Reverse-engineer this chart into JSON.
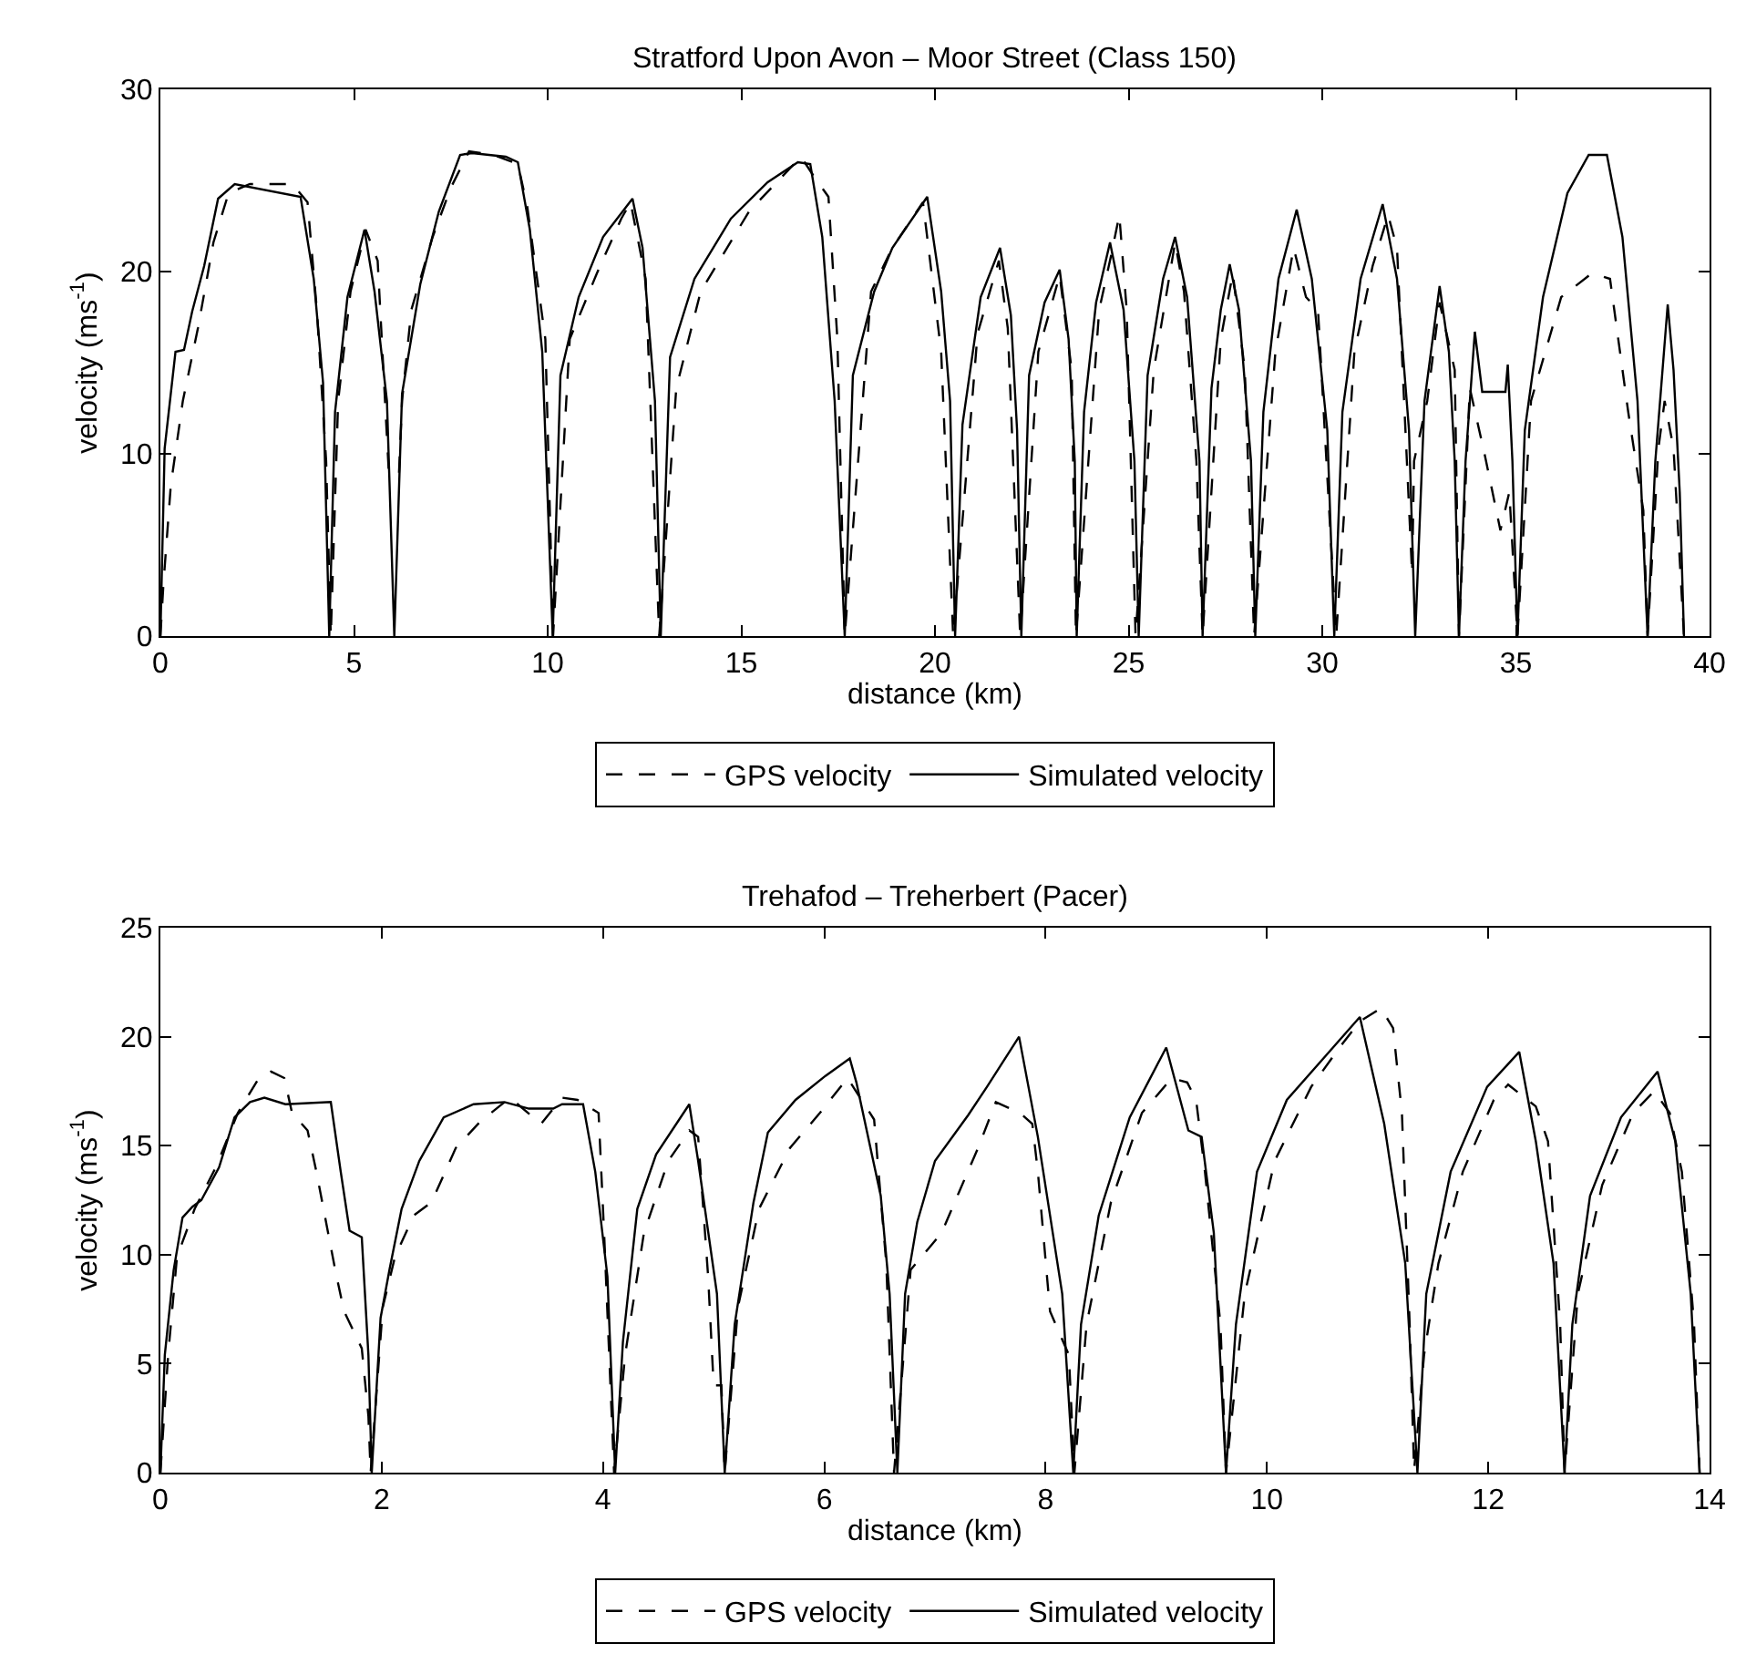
{
  "chart_data": [
    {
      "type": "line",
      "title": "Stratford Upon Avon – Moor Street (Class 150)",
      "xlabel": "distance (km)",
      "ylabel": "velocity (ms$^{-1}$)",
      "xlim": [
        0,
        40
      ],
      "ylim": [
        0,
        30
      ],
      "xticks": [
        0,
        5,
        10,
        15,
        20,
        25,
        30,
        35,
        40
      ],
      "yticks": [
        0,
        10,
        20,
        30
      ],
      "legend": "bottom",
      "series": [
        {
          "name": "GPS velocity",
          "color": "#000000",
          "line_style": "dashed",
          "x": [
            0,
            0.08,
            0.27,
            0.58,
            0.97,
            1.37,
            1.76,
            2.31,
            3.41,
            3.8,
            4.04,
            4.28,
            4.4,
            4.59,
            4.91,
            5.3,
            5.61,
            5.9,
            6.16,
            6.24,
            6.48,
            7.03,
            7.5,
            7.97,
            8.6,
            9.23,
            9.47,
            9.94,
            10.14,
            10.57,
            11.27,
            11.9,
            12.14,
            12.53,
            12.88,
            13.32,
            13.95,
            15.2,
            16.54,
            16.85,
            17.25,
            17.48,
            17.67,
            18.35,
            18.9,
            19.69,
            20.16,
            20.47,
            21.1,
            21.65,
            21.88,
            22.2,
            22.67,
            23.22,
            23.53,
            23.64,
            24.24,
            24.55,
            24.76,
            24.95,
            25.18,
            25.65,
            26.2,
            26.43,
            26.75,
            26.91,
            27.38,
            27.69,
            28.0,
            28.24,
            28.79,
            29.26,
            29.58,
            29.89,
            30.36,
            30.83,
            31.3,
            31.7,
            31.93,
            32.32,
            32.37,
            32.71,
            33.03,
            33.42,
            33.53,
            33.81,
            34.2,
            34.6,
            34.83,
            35.04,
            35.39,
            36.17,
            36.96,
            37.43,
            37.9,
            38.29,
            38.4,
            38.68,
            38.84,
            39.07,
            39.34
          ],
          "values": [
            0,
            2.9,
            8.3,
            12.9,
            16.9,
            21.6,
            24.3,
            24.8,
            24.8,
            23.8,
            17.9,
            9.6,
            0,
            12.9,
            18.9,
            22.3,
            20.6,
            8.9,
            8.9,
            12.9,
            17.9,
            21.9,
            24.6,
            26.6,
            26.4,
            25.9,
            23.6,
            16.3,
            0,
            16.3,
            19.9,
            22.9,
            23.8,
            19.6,
            0,
            13.6,
            18.9,
            23.3,
            26.3,
            25.3,
            24.1,
            16.3,
            0,
            18.9,
            21.3,
            23.8,
            15.6,
            0,
            16.6,
            20.6,
            16.9,
            0,
            15.6,
            19.8,
            14.6,
            0,
            17.9,
            20.9,
            23.1,
            17.9,
            0,
            14.6,
            21.6,
            18.9,
            9.6,
            0,
            16.3,
            19.9,
            14.6,
            0,
            15.6,
            21.3,
            18.6,
            17.9,
            0,
            15.6,
            20.3,
            23.1,
            21.3,
            3.4,
            9.6,
            12.9,
            18.3,
            14.6,
            0,
            13.6,
            9.9,
            5.8,
            7.9,
            0,
            12.9,
            18.6,
            19.9,
            19.6,
            12.3,
            6.9,
            0,
            10.3,
            12.9,
            10.3,
            0
          ]
        },
        {
          "name": "Simulated velocity",
          "color": "#000000",
          "line_style": "solid",
          "x": [
            0,
            0.11,
            0.39,
            0.61,
            0.82,
            1.13,
            1.49,
            1.92,
            3.62,
            3.96,
            4.2,
            4.36,
            4.51,
            4.83,
            5.27,
            5.53,
            5.85,
            6.04,
            6.24,
            6.71,
            7.19,
            7.74,
            8.05,
            8.92,
            9.23,
            9.54,
            9.86,
            10.13,
            10.33,
            10.8,
            11.43,
            12.19,
            12.45,
            12.77,
            12.92,
            13.16,
            13.79,
            14.73,
            15.68,
            16.46,
            16.78,
            17.09,
            17.41,
            17.67,
            17.88,
            18.43,
            18.9,
            19.8,
            20.16,
            20.39,
            20.52,
            20.71,
            21.18,
            21.68,
            21.96,
            22.12,
            22.23,
            22.43,
            22.83,
            23.22,
            23.45,
            23.61,
            23.66,
            23.85,
            24.16,
            24.52,
            24.87,
            25.15,
            25.26,
            25.49,
            25.89,
            26.2,
            26.51,
            26.83,
            26.91,
            27.14,
            27.38,
            27.61,
            27.85,
            28.16,
            28.27,
            28.48,
            28.87,
            29.34,
            29.73,
            30.13,
            30.31,
            30.52,
            30.99,
            31.56,
            31.93,
            32.24,
            32.4,
            32.64,
            33.03,
            33.27,
            33.42,
            33.53,
            33.7,
            33.94,
            34.13,
            34.73,
            34.79,
            34.91,
            35.04,
            35.23,
            35.7,
            36.33,
            36.88,
            37.35,
            37.75,
            38.14,
            38.4,
            38.6,
            38.92,
            39.07,
            39.23,
            39.34
          ],
          "values": [
            0,
            10.3,
            15.6,
            15.7,
            17.8,
            20.3,
            24,
            24.8,
            24.1,
            19.6,
            13.9,
            0,
            12.3,
            18.6,
            22.3,
            18.9,
            12.9,
            0,
            13.3,
            19.3,
            23.3,
            26.4,
            26.5,
            26.3,
            26,
            22.3,
            15.6,
            0,
            14.3,
            18.6,
            21.9,
            24,
            21.3,
            12.9,
            0,
            15.3,
            19.6,
            22.9,
            24.9,
            26,
            25.9,
            21.9,
            12.9,
            0,
            14.3,
            18.9,
            21.3,
            24.1,
            18.9,
            12.9,
            0,
            11.6,
            18.6,
            21.3,
            17.6,
            11.3,
            0,
            14.3,
            18.3,
            20.1,
            16.3,
            9.6,
            0,
            12.3,
            18.3,
            21.6,
            17.9,
            9.6,
            0,
            14.3,
            19.6,
            21.9,
            18.6,
            9.6,
            0,
            13.6,
            17.9,
            20.4,
            17.9,
            9.6,
            0,
            12.3,
            19.6,
            23.4,
            19.6,
            11.3,
            0,
            12.3,
            19.6,
            23.7,
            19.6,
            11.3,
            0,
            12.9,
            19.2,
            15.6,
            9.6,
            0,
            9.6,
            16.7,
            13.4,
            13.4,
            14.9,
            9.6,
            0,
            11.3,
            18.6,
            24.3,
            26.4,
            26.4,
            21.9,
            12.9,
            0,
            9.6,
            18.2,
            14.6,
            7.9,
            0
          ]
        }
      ]
    },
    {
      "type": "line",
      "title": "Trehafod – Treherbert (Pacer)",
      "xlabel": "distance (km)",
      "ylabel": "velocity (ms$^{-1}$)",
      "xlim": [
        0,
        14
      ],
      "ylim": [
        0,
        25
      ],
      "xticks": [
        0,
        2,
        4,
        6,
        8,
        10,
        12,
        14
      ],
      "yticks": [
        0,
        5,
        10,
        15,
        20,
        25
      ],
      "legend": "bottom",
      "series": [
        {
          "name": "GPS velocity",
          "color": "#000000",
          "line_style": "dashed",
          "x": [
            0,
            0.07,
            0.15,
            0.31,
            0.5,
            0.7,
            0.89,
            1.0,
            1.12,
            1.19,
            1.33,
            1.41,
            1.58,
            1.66,
            1.82,
            1.88,
            1.9,
            2.01,
            2.12,
            2.29,
            2.45,
            2.67,
            2.89,
            3.16,
            3.44,
            3.63,
            3.77,
            3.96,
            4.01,
            4.1,
            4.2,
            4.37,
            4.59,
            4.78,
            4.86,
            4.95,
            5.0,
            5.07,
            5.1,
            5.22,
            5.41,
            5.69,
            5.96,
            6.21,
            6.45,
            6.56,
            6.63,
            6.78,
            7.06,
            7.22,
            7.39,
            7.55,
            7.77,
            7.88,
            7.93,
            8.04,
            8.21,
            8.26,
            8.37,
            8.59,
            8.87,
            9.14,
            9.28,
            9.36,
            9.44,
            9.58,
            9.63,
            9.8,
            10.07,
            10.4,
            10.67,
            10.84,
            11.03,
            11.14,
            11.22,
            11.29,
            11.33,
            11.42,
            11.55,
            11.77,
            12.05,
            12.18,
            12.43,
            12.54,
            12.65,
            12.69,
            12.81,
            13.03,
            13.31,
            13.5,
            13.64,
            13.75,
            13.86,
            13.91
          ],
          "values": [
            0,
            5.4,
            9.9,
            12.1,
            14.0,
            16.5,
            18.1,
            18.4,
            18.1,
            16.5,
            15.7,
            13.8,
            9.3,
            7.4,
            5.7,
            2.6,
            0,
            7.6,
            9.9,
            11.8,
            12.4,
            14.9,
            16.1,
            17.2,
            16.0,
            17.2,
            17.1,
            16.5,
            11.0,
            0,
            5.4,
            11.0,
            14.3,
            15.7,
            15.4,
            9.0,
            4.0,
            4.0,
            0,
            7.6,
            12.1,
            14.9,
            16.5,
            18.1,
            16.2,
            9.6,
            0,
            9.3,
            11.0,
            12.9,
            14.9,
            17.0,
            16.5,
            16.0,
            13.8,
            7.4,
            5.4,
            0,
            6.8,
            12.4,
            16.5,
            18.1,
            17.9,
            17.1,
            13.8,
            6.8,
            0,
            8.2,
            14.3,
            17.7,
            19.6,
            20.7,
            21.3,
            20.4,
            16.5,
            6.8,
            0.1,
            5.4,
            9.6,
            13.8,
            17.1,
            17.8,
            16.8,
            15.2,
            6.8,
            0,
            8.2,
            13.2,
            16.5,
            17.5,
            16.5,
            13.8,
            6.8,
            0
          ]
        },
        {
          "name": "Simulated velocity",
          "color": "#000000",
          "line_style": "solid",
          "x": [
            0,
            0.04,
            0.12,
            0.2,
            0.29,
            0.37,
            0.53,
            0.67,
            0.81,
            0.94,
            1.13,
            1.54,
            1.63,
            1.71,
            1.82,
            1.88,
            1.91,
            1.99,
            2.07,
            2.18,
            2.34,
            2.56,
            2.83,
            3.11,
            3.33,
            3.55,
            3.63,
            3.82,
            3.93,
            4.04,
            4.11,
            4.18,
            4.31,
            4.48,
            4.78,
            4.86,
            5.03,
            5.1,
            5.19,
            5.36,
            5.49,
            5.74,
            6.01,
            6.23,
            6.29,
            6.51,
            6.59,
            6.66,
            6.73,
            6.84,
            7.0,
            7.3,
            7.47,
            7.76,
            7.93,
            8.15,
            8.25,
            8.32,
            8.48,
            8.76,
            9.09,
            9.29,
            9.41,
            9.52,
            9.63,
            9.72,
            9.91,
            10.18,
            10.51,
            10.84,
            11.06,
            11.25,
            11.36,
            11.44,
            11.66,
            11.99,
            12.28,
            12.43,
            12.59,
            12.69,
            12.76,
            12.92,
            13.2,
            13.53,
            13.69,
            13.83,
            13.91
          ],
          "values": [
            0,
            5.4,
            9.3,
            11.7,
            12.2,
            12.5,
            14.0,
            16.3,
            17.0,
            17.2,
            16.9,
            17.0,
            13.8,
            11.1,
            10.8,
            5.4,
            0,
            7.1,
            9.3,
            12.1,
            14.3,
            16.3,
            16.9,
            17.0,
            16.7,
            16.7,
            16.9,
            16.9,
            13.8,
            9.0,
            0,
            6.0,
            12.1,
            14.6,
            16.9,
            14.3,
            8.2,
            0,
            6.8,
            12.4,
            15.6,
            17.1,
            18.2,
            19.0,
            17.9,
            12.7,
            8.2,
            0,
            8.2,
            11.5,
            14.3,
            16.4,
            17.7,
            20.0,
            15.4,
            8.2,
            0,
            6.8,
            11.8,
            16.3,
            19.5,
            15.7,
            15.4,
            11.0,
            0,
            6.8,
            13.8,
            17.1,
            19.0,
            20.9,
            16.0,
            9.6,
            0,
            8.2,
            13.8,
            17.7,
            19.3,
            15.2,
            9.6,
            0,
            6.8,
            12.7,
            16.3,
            18.4,
            15.2,
            8.2,
            0
          ]
        }
      ]
    }
  ]
}
